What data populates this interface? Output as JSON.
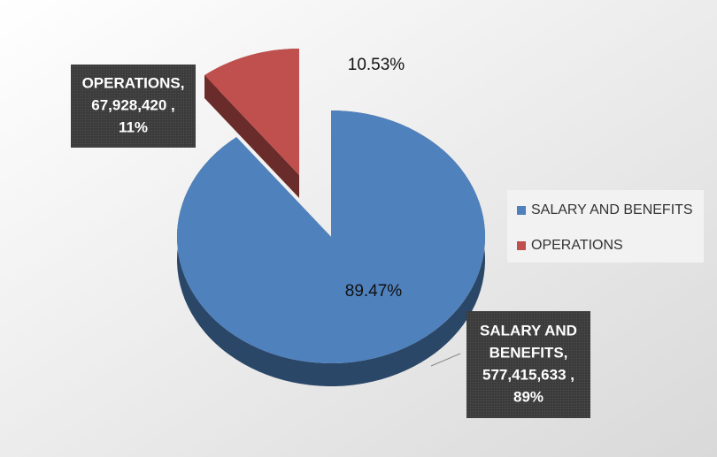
{
  "chart_data": {
    "type": "pie",
    "categories": [
      "SALARY AND BENEFITS",
      "OPERATIONS"
    ],
    "values": [
      577415633,
      67928420
    ],
    "colors": [
      "#4f81bd",
      "#c0504d"
    ],
    "exploded": [
      false,
      true
    ],
    "percent_labels": [
      "89.47%",
      "10.53%"
    ],
    "callouts": [
      [
        "SALARY AND",
        "BENEFITS,",
        "577,415,633 ,",
        "89%"
      ],
      [
        "OPERATIONS,",
        "67,928,420 ,",
        "11%"
      ]
    ],
    "legend": "right"
  }
}
